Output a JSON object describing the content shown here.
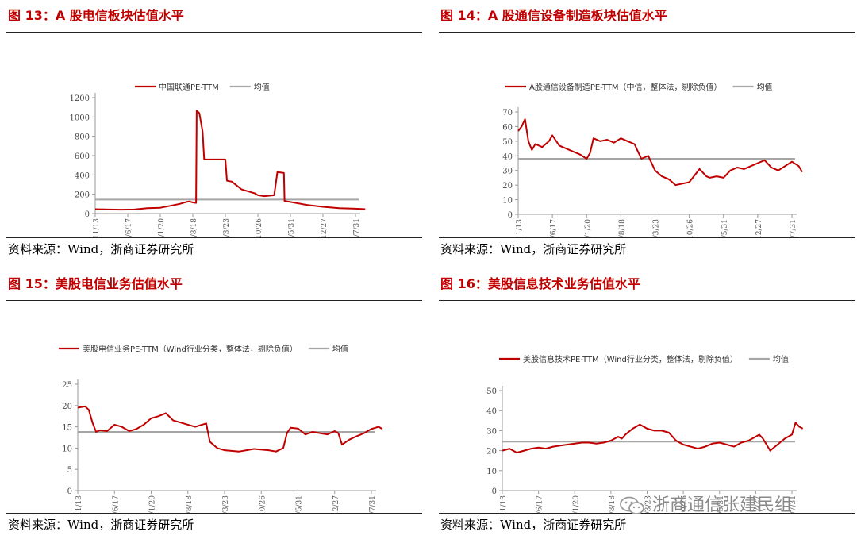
{
  "colors": {
    "series": "#c00000",
    "mean": "#a6a6a6",
    "axis": "#999999"
  },
  "watermark": {
    "text": "浙商通信张建民组",
    "icon": "wechat-icon"
  },
  "panels": [
    {
      "title": "图 13：A 股电信板块估值水平",
      "source": "资料来源：Wind，浙商证券研究所"
    },
    {
      "title": "图 14：A 股通信设备制造板块估值水平",
      "source": "资料来源：Wind，浙商证券研究所"
    },
    {
      "title": "图 15：美股电信业务估值水平",
      "source": "资料来源：Wind，浙商证券研究所"
    },
    {
      "title": "图 16：美股信息技术业务估值水平",
      "source": "资料来源：Wind，浙商证券研究所"
    }
  ],
  "chart_data": [
    {
      "type": "line",
      "legend": [
        "中国联通PE-TTM",
        "均值"
      ],
      "yticks": [
        0,
        200,
        400,
        600,
        800,
        1000,
        1200
      ],
      "ylim": [
        0,
        1200
      ],
      "xticks": [
        "2015/11/13",
        "2016/6/17",
        "2017/1/20",
        "2017/8/18",
        "2018/3/23",
        "2018/10/26",
        "2019/5/31",
        "2019/12/27",
        "2020/7/31"
      ],
      "mean": 145,
      "x": [
        0,
        0.4,
        0.8,
        1.2,
        1.6,
        2.0,
        2.3,
        2.6,
        2.8,
        2.9,
        3.0,
        3.1,
        3.12,
        3.2,
        3.3,
        3.35,
        3.6,
        3.9,
        4.0,
        4.05,
        4.2,
        4.5,
        4.6,
        4.9,
        5.0,
        5.2,
        5.5,
        5.6,
        5.8,
        5.82,
        6.0,
        6.5,
        7.0,
        7.5,
        8.0,
        8.3
      ],
      "values": [
        45,
        42,
        40,
        42,
        55,
        60,
        80,
        100,
        120,
        125,
        115,
        110,
        1065,
        1040,
        850,
        560,
        560,
        560,
        560,
        340,
        330,
        250,
        240,
        210,
        190,
        180,
        190,
        430,
        420,
        130,
        120,
        90,
        70,
        55,
        50,
        45
      ]
    },
    {
      "type": "line",
      "legend": [
        "A股通信设备制造PE-TTM（中信，整体法，剔除负值）",
        "均值"
      ],
      "yticks": [
        0,
        10,
        20,
        30,
        40,
        50,
        60,
        70
      ],
      "ylim": [
        0,
        70
      ],
      "xticks": [
        "2015/11/13",
        "2016/6/17",
        "2017/1/20",
        "2017/8/18",
        "2018/3/23",
        "2018/10/26",
        "2019/5/31",
        "2019/12/27",
        "2020/7/31"
      ],
      "mean": 38,
      "x": [
        0,
        0.1,
        0.2,
        0.3,
        0.4,
        0.5,
        0.7,
        0.9,
        1.0,
        1.2,
        1.4,
        1.6,
        1.8,
        2.0,
        2.1,
        2.2,
        2.4,
        2.6,
        2.8,
        3.0,
        3.2,
        3.4,
        3.5,
        3.6,
        3.8,
        4.0,
        4.2,
        4.4,
        4.6,
        4.8,
        5.0,
        5.2,
        5.3,
        5.5,
        5.6,
        5.8,
        6.0,
        6.2,
        6.4,
        6.6,
        6.8,
        7.0,
        7.2,
        7.4,
        7.6,
        7.8,
        8.0,
        8.2,
        8.3
      ],
      "values": [
        57,
        60,
        65,
        50,
        44,
        48,
        46,
        50,
        54,
        47,
        45,
        43,
        41,
        38,
        42,
        52,
        50,
        51,
        49,
        52,
        50,
        48,
        43,
        38,
        40,
        30,
        26,
        24,
        20,
        21,
        22,
        28,
        31,
        26,
        25,
        26,
        25,
        30,
        32,
        31,
        33,
        35,
        37,
        32,
        30,
        33,
        36,
        33,
        29
      ]
    },
    {
      "type": "line",
      "legend": [
        "美股电信业务PE-TTM（Wind行业分类，整体法，剔除负值）",
        "均值"
      ],
      "yticks": [
        0,
        5,
        10,
        15,
        20,
        25
      ],
      "ylim": [
        0,
        25
      ],
      "xticks": [
        "2015/11/13",
        "2016/6/17",
        "2017/1/20",
        "2017/8/18",
        "2018/3/23",
        "2018/10/26",
        "2019/5/31",
        "2019/12/27",
        "2020/7/31"
      ],
      "mean": 13.8,
      "x": [
        0,
        0.2,
        0.3,
        0.4,
        0.5,
        0.6,
        0.8,
        1.0,
        1.2,
        1.4,
        1.6,
        1.8,
        2.0,
        2.2,
        2.4,
        2.6,
        2.8,
        3.0,
        3.2,
        3.5,
        3.6,
        3.8,
        4.0,
        4.4,
        4.8,
        5.2,
        5.4,
        5.6,
        5.7,
        5.8,
        6.0,
        6.2,
        6.4,
        6.6,
        6.8,
        7.0,
        7.1,
        7.2,
        7.4,
        7.6,
        7.8,
        8.0,
        8.2,
        8.3
      ],
      "values": [
        19.5,
        19.8,
        19.0,
        16.0,
        13.8,
        14.2,
        14.0,
        15.5,
        15.0,
        14.0,
        14.5,
        15.5,
        17.0,
        17.5,
        18.2,
        16.5,
        16.0,
        15.5,
        15.0,
        15.8,
        11.5,
        10.0,
        9.5,
        9.2,
        9.8,
        9.5,
        9.2,
        10.0,
        13.5,
        14.8,
        14.6,
        13.2,
        13.8,
        13.5,
        13.2,
        14.0,
        13.5,
        10.8,
        12.0,
        12.8,
        13.5,
        14.5,
        15.0,
        14.5
      ]
    },
    {
      "type": "line",
      "legend": [
        "美股信息技术PE-TTM（Wind行业分类，整体法，剔除负值）",
        "均值"
      ],
      "yticks": [
        0,
        10,
        20,
        30,
        40,
        50
      ],
      "ylim": [
        0,
        50
      ],
      "xticks": [
        "2015/11/13",
        "2016/6/17",
        "2017/1/20",
        "2017/8/18",
        "2018/3/23",
        "2018/10/26",
        "2019/5/31",
        "2019/12/27",
        "2020/7/31"
      ],
      "mean": 24.5,
      "x": [
        0,
        0.2,
        0.4,
        0.6,
        0.8,
        1.0,
        1.2,
        1.4,
        1.6,
        1.8,
        2.0,
        2.2,
        2.4,
        2.6,
        2.8,
        3.0,
        3.2,
        3.3,
        3.4,
        3.6,
        3.8,
        4.0,
        4.2,
        4.4,
        4.6,
        4.8,
        5.0,
        5.2,
        5.4,
        5.6,
        5.8,
        6.0,
        6.2,
        6.4,
        6.6,
        6.8,
        7.0,
        7.1,
        7.2,
        7.4,
        7.6,
        7.8,
        8.0,
        8.1,
        8.2,
        8.3
      ],
      "values": [
        20,
        21,
        19,
        20,
        21,
        21.5,
        21,
        22,
        22.5,
        23,
        23.5,
        24,
        24,
        23.5,
        24,
        25,
        27,
        26,
        28,
        31,
        33,
        31,
        30,
        30,
        29,
        25,
        23,
        22,
        21,
        22,
        23.5,
        24,
        23,
        22,
        24,
        25,
        27,
        28,
        26,
        20,
        23,
        26,
        28,
        34,
        32,
        31
      ]
    }
  ]
}
